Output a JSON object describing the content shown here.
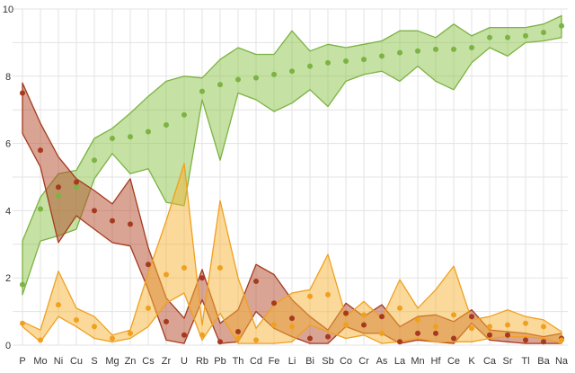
{
  "chart_data": {
    "type": "line",
    "title": "",
    "xlabel": "",
    "ylabel": "",
    "ylim": [
      0,
      10
    ],
    "grid": true,
    "legend": "none",
    "categories": [
      "P",
      "Mo",
      "Ni",
      "Cu",
      "S",
      "Mg",
      "Zn",
      "Cs",
      "Zr",
      "U",
      "Rb",
      "Pb",
      "Th",
      "Cd",
      "Fe",
      "Li",
      "Bi",
      "Sb",
      "Co",
      "Cr",
      "As",
      "La",
      "Mn",
      "Hf",
      "Ce",
      "K",
      "Ca",
      "Sr",
      "Tl",
      "Ba",
      "Na"
    ],
    "yticks": [
      0,
      2,
      4,
      6,
      8,
      10
    ],
    "series": [
      {
        "color": "#7cb342",
        "fill": "#8bc34a",
        "values": [
          1.8,
          4.05,
          4.45,
          4.7,
          5.5,
          6.15,
          6.2,
          6.35,
          6.55,
          6.85,
          7.55,
          7.75,
          7.9,
          7.95,
          8.05,
          8.15,
          8.3,
          8.4,
          8.45,
          8.5,
          8.6,
          8.7,
          8.75,
          8.8,
          8.8,
          8.85,
          9.15,
          9.15,
          9.2,
          9.3,
          9.5
        ],
        "upper": [
          3.1,
          4.4,
          5.1,
          5.2,
          6.15,
          6.45,
          6.9,
          7.4,
          7.85,
          8.0,
          7.95,
          8.5,
          8.85,
          8.65,
          8.65,
          9.35,
          8.75,
          8.95,
          8.85,
          8.95,
          9.05,
          9.35,
          9.35,
          9.15,
          9.55,
          9.2,
          9.45,
          9.45,
          9.45,
          9.55,
          9.8
        ],
        "lower": [
          1.5,
          3.1,
          3.25,
          3.45,
          4.95,
          5.7,
          5.1,
          5.25,
          4.25,
          4.15,
          7.3,
          5.5,
          7.5,
          7.3,
          6.95,
          7.2,
          7.6,
          7.1,
          7.85,
          8.05,
          8.15,
          7.85,
          8.3,
          7.85,
          7.6,
          8.4,
          8.85,
          8.6,
          9.0,
          9.05,
          9.15
        ]
      },
      {
        "color": "#a53a1e",
        "fill": "#b34a2a",
        "values": [
          7.5,
          5.8,
          4.7,
          4.85,
          4.0,
          3.7,
          3.6,
          2.4,
          0.7,
          0.3,
          2.0,
          0.1,
          0.4,
          1.9,
          1.25,
          0.8,
          0.2,
          0.25,
          0.95,
          0.6,
          0.85,
          0.1,
          0.35,
          0.35,
          0.2,
          0.85,
          0.3,
          0.3,
          0.15,
          0.1,
          0.2
        ],
        "upper": [
          7.8,
          6.6,
          5.6,
          4.95,
          4.6,
          4.2,
          4.95,
          2.9,
          1.4,
          0.8,
          2.25,
          0.65,
          1.05,
          2.4,
          2.1,
          1.35,
          0.85,
          0.45,
          1.25,
          0.85,
          1.2,
          0.55,
          0.85,
          0.9,
          0.7,
          1.05,
          0.45,
          0.4,
          0.35,
          0.25,
          0.35
        ],
        "lower": [
          6.3,
          5.3,
          3.05,
          3.85,
          3.45,
          3.05,
          2.95,
          1.65,
          0.15,
          0.05,
          1.35,
          0.05,
          0.1,
          1.0,
          0.5,
          0.25,
          0.05,
          0.05,
          0.55,
          0.35,
          0.35,
          0.05,
          0.15,
          0.1,
          0.05,
          0.65,
          0.15,
          0.1,
          0.05,
          0.05,
          0.05
        ]
      },
      {
        "color": "#f0a020",
        "fill": "#f5b335",
        "values": [
          0.65,
          0.15,
          1.2,
          0.75,
          0.55,
          0.2,
          0.35,
          1.1,
          2.1,
          2.3,
          0.3,
          2.3,
          0.2,
          0.15,
          0.6,
          0.55,
          1.45,
          1.5,
          0.6,
          0.9,
          0.35,
          1.1,
          0.75,
          0.55,
          0.9,
          0.5,
          0.55,
          0.6,
          0.65,
          0.55,
          0.15
        ],
        "upper": [
          0.7,
          0.45,
          2.2,
          1.1,
          0.85,
          0.3,
          0.45,
          2.15,
          3.7,
          5.4,
          0.6,
          4.3,
          2.0,
          0.5,
          1.2,
          1.55,
          1.65,
          2.7,
          0.85,
          1.3,
          0.8,
          1.95,
          1.1,
          1.65,
          2.35,
          0.75,
          0.85,
          1.05,
          0.85,
          0.75,
          0.4
        ],
        "lower": [
          0.55,
          0.1,
          0.85,
          0.55,
          0.2,
          0.1,
          0.2,
          0.55,
          1.25,
          1.55,
          0.15,
          0.95,
          0.05,
          0.05,
          0.05,
          0.1,
          0.6,
          0.4,
          0.2,
          0.3,
          0.05,
          0.1,
          0.2,
          0.1,
          0.1,
          0.1,
          0.2,
          0.25,
          0.25,
          0.2,
          0.05
        ]
      }
    ]
  }
}
